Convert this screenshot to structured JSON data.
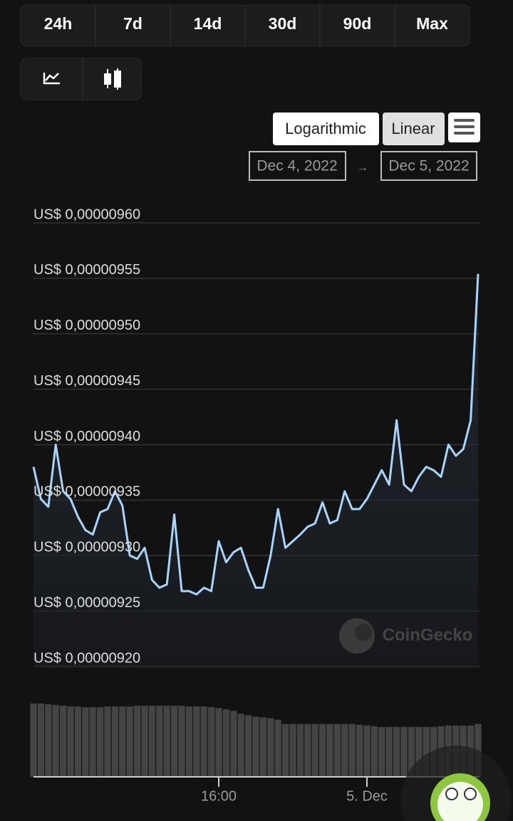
{
  "tabs": [
    "24h",
    "7d",
    "14d",
    "30d",
    "90d",
    "Max"
  ],
  "scale_buttons": [
    "Logarithmic",
    "Linear"
  ],
  "date_from": "Dec 4, 2022",
  "date_arrow": "→",
  "date_to": "Dec 5, 2022",
  "watermark": "CoinGecko",
  "chart_data": {
    "type": "line",
    "categories": [
      "",
      "",
      "",
      "",
      "",
      "",
      "",
      "",
      "",
      "",
      "",
      "",
      "",
      "",
      "",
      "",
      "",
      "",
      "",
      "",
      "",
      "",
      "",
      "",
      "",
      "16:00",
      "",
      "",
      "",
      "",
      "",
      "",
      "",
      "",
      "",
      "",
      "",
      "",
      "",
      "",
      "",
      "",
      "",
      "",
      "",
      "5. Dec",
      "",
      "",
      "",
      "",
      "",
      "",
      "",
      "",
      "",
      "",
      "",
      "",
      "",
      "",
      ""
    ],
    "series": [
      {
        "color": "#a8d4ff",
        "values": [
          9.38e-06,
          9.351e-06,
          9.344e-06,
          9.4e-06,
          9.358e-06,
          9.351e-06,
          9.335e-06,
          9.323e-06,
          9.319e-06,
          9.339e-06,
          9.342e-06,
          9.358e-06,
          9.345e-06,
          9.3e-06,
          9.297e-06,
          9.307e-06,
          9.278e-06,
          9.271e-06,
          9.274e-06,
          9.337e-06,
          9.268e-06,
          9.268e-06,
          9.265e-06,
          9.271e-06,
          9.268e-06,
          9.313e-06,
          9.294e-06,
          9.303e-06,
          9.307e-06,
          9.287e-06,
          9.271e-06,
          9.271e-06,
          9.3e-06,
          9.342e-06,
          9.307e-06,
          9.313e-06,
          9.319e-06,
          9.326e-06,
          9.329e-06,
          9.348e-06,
          9.329e-06,
          9.332e-06,
          9.358e-06,
          9.342e-06,
          9.342e-06,
          9.351e-06,
          9.364e-06,
          9.377e-06,
          9.364e-06,
          9.422e-06,
          9.364e-06,
          9.358e-06,
          9.371e-06,
          9.38e-06,
          9.377e-06,
          9.371e-06,
          9.4e-06,
          9.39e-06,
          9.396e-06,
          9.422e-06,
          9.554e-06
        ]
      }
    ],
    "volume": {
      "color": "#444444",
      "ylim": [
        0,
        100
      ],
      "values": [
        100,
        100,
        99,
        98,
        97,
        96,
        96,
        95,
        95,
        95,
        96,
        96,
        96,
        96,
        97,
        97,
        97,
        97,
        97,
        97,
        97,
        96,
        96,
        96,
        95,
        94,
        92,
        90,
        86,
        84,
        82,
        81,
        80,
        78,
        72,
        72,
        72,
        72,
        72,
        72,
        72,
        72,
        72,
        72,
        71,
        70,
        69,
        68,
        68,
        68,
        68,
        68,
        68,
        68,
        68,
        69,
        70,
        70,
        70,
        70,
        72
      ]
    },
    "ylim": [
      9.2e-06,
      9.6e-06
    ],
    "yticks": [
      {
        "value": 9.2e-06,
        "label": "US$ 0,00000920"
      },
      {
        "value": 9.25e-06,
        "label": "US$ 0,00000925"
      },
      {
        "value": 9.3e-06,
        "label": "US$ 0,00000930"
      },
      {
        "value": 9.35e-06,
        "label": "US$ 0,00000935"
      },
      {
        "value": 9.4e-06,
        "label": "US$ 0,00000940"
      },
      {
        "value": 9.45e-06,
        "label": "US$ 0,00000945"
      },
      {
        "value": 9.5e-06,
        "label": "US$ 0,00000950"
      },
      {
        "value": 9.55e-06,
        "label": "US$ 0,00000955"
      },
      {
        "value": 9.6e-06,
        "label": "US$ 0,00000960"
      }
    ],
    "grid": true
  }
}
